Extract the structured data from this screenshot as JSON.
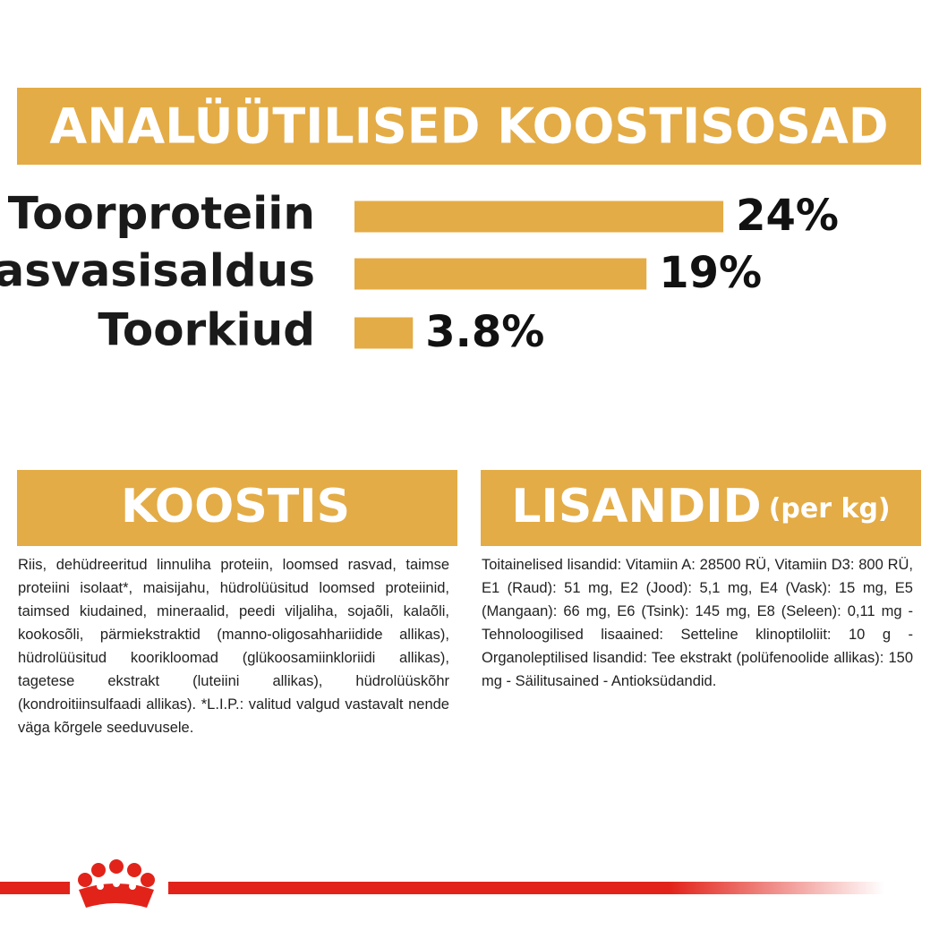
{
  "header": {
    "title": "ANALÜÜTILISED KOOSTISOSAD"
  },
  "chart_data": {
    "type": "bar",
    "categories": [
      "Toorproteiin",
      "Rasvasisaldus",
      "Toorkiud"
    ],
    "values": [
      24,
      19,
      3.8
    ],
    "value_labels": [
      "24%",
      "19%",
      "3.8%"
    ],
    "color": "#e4ac46"
  },
  "composition": {
    "title": "KOOSTIS",
    "text": "Riis, dehüdreeritud linnuliha proteiin, loomsed rasvad, taimse proteiini isolaat*, maisijahu, hüdrolüüsitud loomsed proteiinid, taimsed kiudained, mineraalid, peedi viljaliha, sojaõli, kalaõli, kookosõli, pärmiekstraktid (manno-oligosahhariidide allikas), hüdrolüüsitud koorikloomad (glükoosamiinkloriidi allikas), tagetese ekstrakt (luteiini allikas), hüdrolüüskõhr (kondroitiinsulfaadi allikas). *L.I.P.: valitud valgud vastavalt nende väga kõrgele seeduvusele."
  },
  "additives": {
    "title": "LISANDID",
    "subtitle": "(per kg)",
    "text": "Toitainelised lisandid: Vitamiin A: 28500 RÜ, Vitamiin D3: 800 RÜ, E1 (Raud): 51 mg, E2 (Jood): 5,1 mg, E4 (Vask): 15 mg, E5 (Mangaan): 66 mg, E6 (Tsink): 145 mg, E8 (Seleen): 0,11 mg - Tehnoloogilised lisaained: Setteline klinoptiloliit: 10 g - Organoleptilised lisandid: Tee ekstrakt (polüfenoolide allikas): 150 mg - Säilitusained - Antioksüdandid."
  }
}
